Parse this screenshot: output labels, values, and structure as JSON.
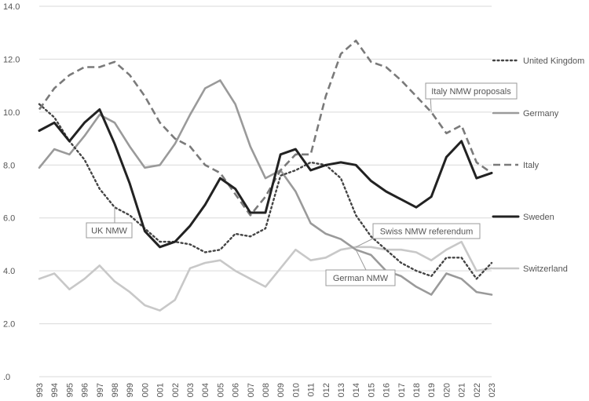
{
  "chart_data": {
    "type": "line",
    "x": [
      "993",
      "994",
      "995",
      "996",
      "997",
      "998",
      "999",
      "000",
      "001",
      "002",
      "003",
      "004",
      "005",
      "006",
      "007",
      "008",
      "009",
      "010",
      "011",
      "012",
      "013",
      "014",
      "015",
      "016",
      "017",
      "018",
      "019",
      "020",
      "021",
      "022",
      "023"
    ],
    "yticks": [
      "14.0",
      "12.0",
      "10.0",
      "8.0",
      "6.0",
      "4.0",
      "2.0",
      ".0"
    ],
    "ylim": [
      0,
      14
    ],
    "grid": true,
    "legend_position": "right",
    "series": [
      {
        "name": "United Kingdom",
        "style": "dotted",
        "color": "#444444",
        "values": [
          10.3,
          9.8,
          8.9,
          8.2,
          7.1,
          6.4,
          6.1,
          5.6,
          5.1,
          5.1,
          5.0,
          4.7,
          4.8,
          5.4,
          5.3,
          5.6,
          7.6,
          7.8,
          8.1,
          8.0,
          7.5,
          6.1,
          5.3,
          4.8,
          4.3,
          4.0,
          3.8,
          4.5,
          4.5,
          3.7,
          4.3
        ]
      },
      {
        "name": "Germany",
        "style": "solid",
        "color": "#9a9a9a",
        "values": [
          7.9,
          8.6,
          8.4,
          9.1,
          9.9,
          9.6,
          8.7,
          7.9,
          8.0,
          8.8,
          9.9,
          10.9,
          11.2,
          10.3,
          8.7,
          7.5,
          7.8,
          7.0,
          5.8,
          5.4,
          5.2,
          4.8,
          4.6,
          4.0,
          3.8,
          3.4,
          3.1,
          3.9,
          3.7,
          3.2,
          3.1
        ]
      },
      {
        "name": "Italy",
        "style": "dashed",
        "color": "#7a7a7a",
        "values": [
          10.1,
          10.9,
          11.4,
          11.7,
          11.7,
          11.9,
          11.4,
          10.6,
          9.6,
          9.0,
          8.7,
          8.0,
          7.7,
          6.9,
          6.1,
          6.8,
          7.8,
          8.4,
          8.4,
          10.6,
          12.2,
          12.7,
          11.9,
          11.7,
          11.2,
          10.6,
          10.0,
          9.2,
          9.5,
          8.1,
          7.7
        ]
      },
      {
        "name": "Sweden",
        "style": "solid-bold",
        "color": "#222222",
        "values": [
          9.3,
          9.6,
          8.9,
          9.6,
          10.1,
          8.8,
          7.3,
          5.5,
          4.9,
          5.1,
          5.7,
          6.5,
          7.5,
          7.1,
          6.2,
          6.2,
          8.4,
          8.6,
          7.8,
          8.0,
          8.1,
          8.0,
          7.4,
          7.0,
          6.7,
          6.4,
          6.8,
          8.3,
          8.9,
          7.5,
          7.7
        ]
      },
      {
        "name": "Switzerland",
        "style": "solid",
        "color": "#c8c8c8",
        "values": [
          3.7,
          3.9,
          3.3,
          3.7,
          4.2,
          3.6,
          3.2,
          2.7,
          2.5,
          2.9,
          4.1,
          4.3,
          4.4,
          4.0,
          3.7,
          3.4,
          4.1,
          4.8,
          4.4,
          4.5,
          4.8,
          4.9,
          4.9,
          4.8,
          4.8,
          4.7,
          4.4,
          4.8,
          5.1,
          4.0,
          4.1
        ]
      }
    ],
    "annotations": [
      {
        "label": "Italy NMW proposals",
        "x_index": 26,
        "y": 10.0
      },
      {
        "label": "UK NMW",
        "x_index": 5,
        "y": 6.4
      },
      {
        "label": "Swiss NMW referendum",
        "x_index": 21,
        "y": 4.9
      },
      {
        "label": "German NMW",
        "x_index": 21,
        "y": 4.8
      }
    ]
  }
}
